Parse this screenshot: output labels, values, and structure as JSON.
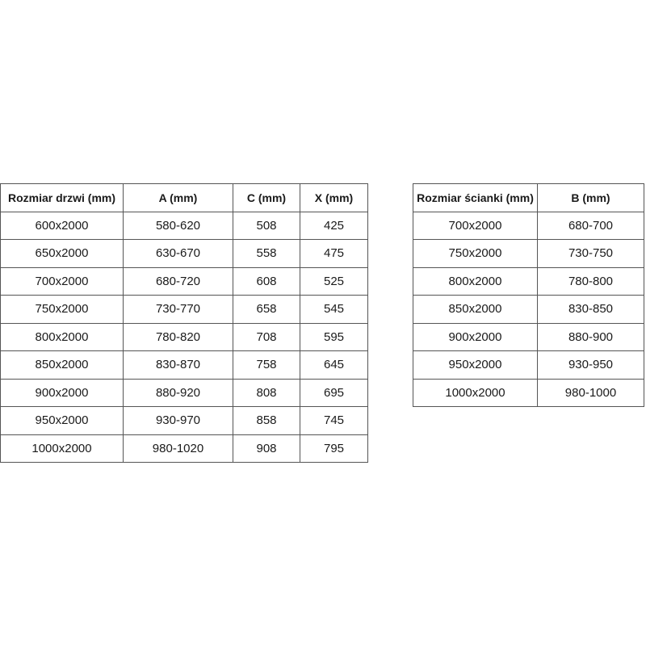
{
  "door_table": {
    "headers": [
      "Rozmiar drzwi (mm)",
      "A (mm)",
      "C (mm)",
      "X (mm)"
    ],
    "rows": [
      [
        "600x2000",
        "580-620",
        "508",
        "425"
      ],
      [
        "650x2000",
        "630-670",
        "558",
        "475"
      ],
      [
        "700x2000",
        "680-720",
        "608",
        "525"
      ],
      [
        "750x2000",
        "730-770",
        "658",
        "545"
      ],
      [
        "800x2000",
        "780-820",
        "708",
        "595"
      ],
      [
        "850x2000",
        "830-870",
        "758",
        "645"
      ],
      [
        "900x2000",
        "880-920",
        "808",
        "695"
      ],
      [
        "950x2000",
        "930-970",
        "858",
        "745"
      ],
      [
        "1000x2000",
        "980-1020",
        "908",
        "795"
      ]
    ]
  },
  "wall_table": {
    "headers": [
      "Rozmiar ścianki (mm)",
      "B (mm)"
    ],
    "rows": [
      [
        "700x2000",
        "680-700"
      ],
      [
        "750x2000",
        "730-750"
      ],
      [
        "800x2000",
        "780-800"
      ],
      [
        "850x2000",
        "830-850"
      ],
      [
        "900x2000",
        "880-900"
      ],
      [
        "950x2000",
        "930-950"
      ],
      [
        "1000x2000",
        "980-1000"
      ]
    ]
  }
}
